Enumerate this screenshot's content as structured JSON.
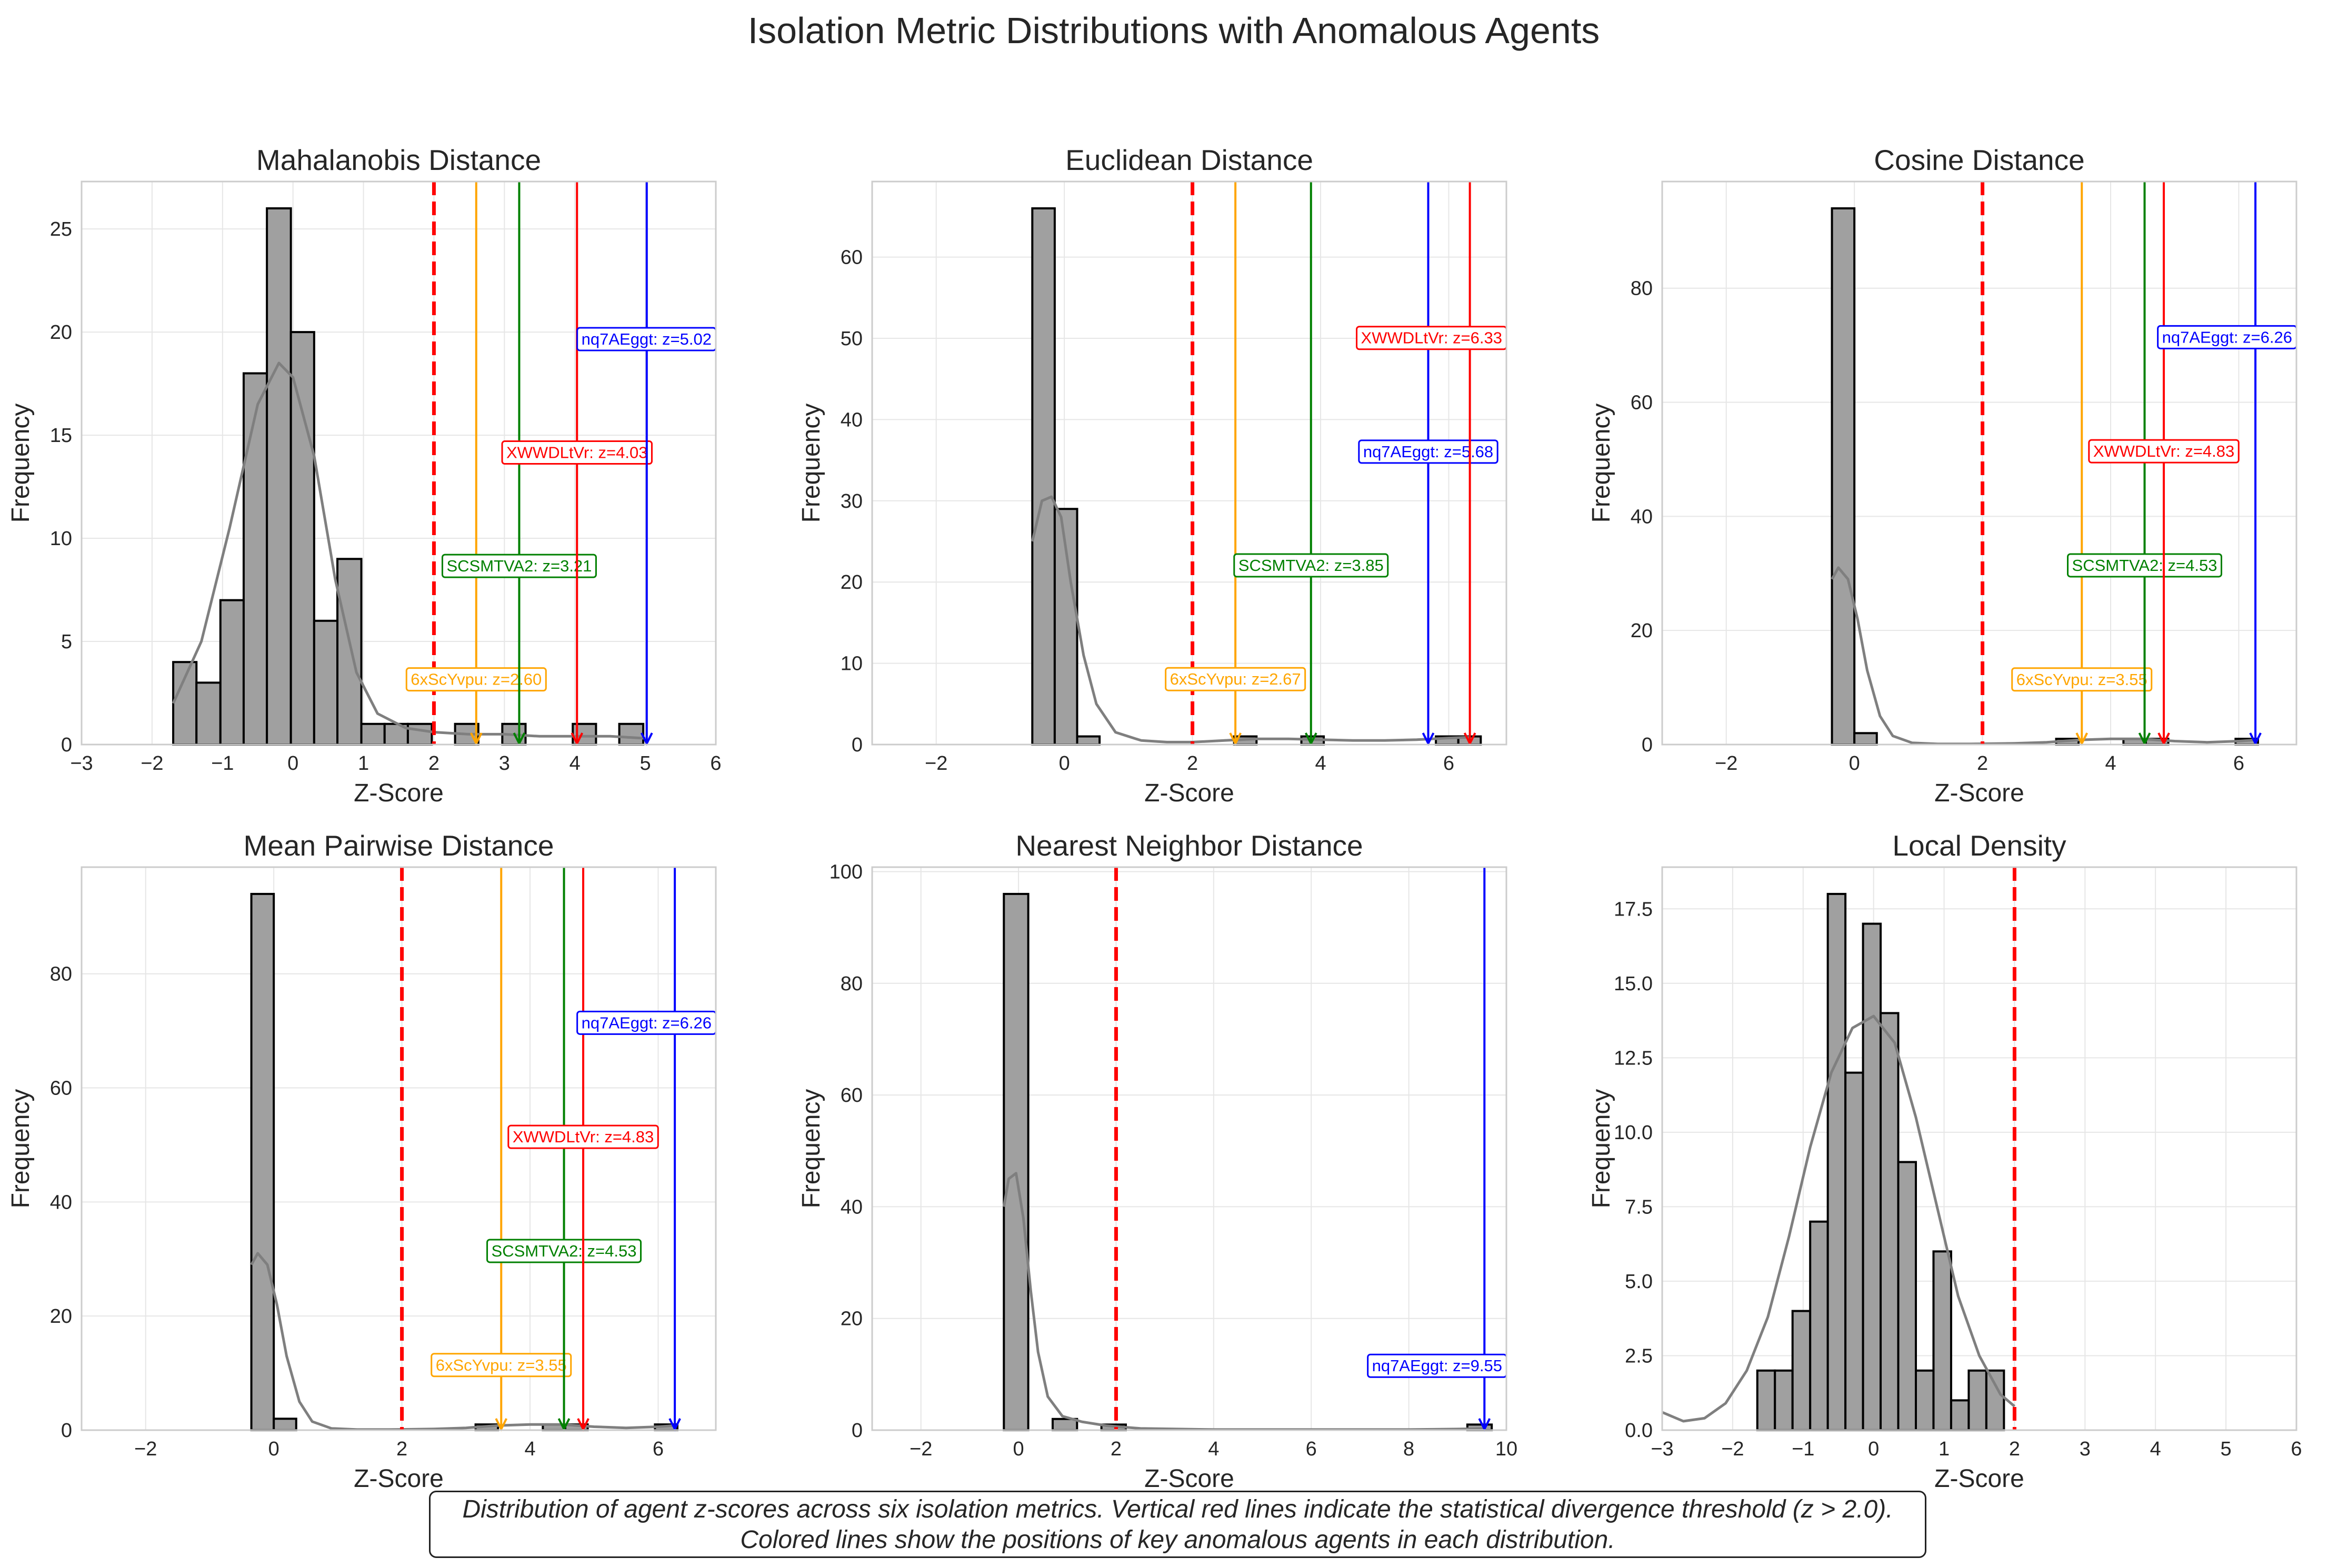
{
  "figure": {
    "title": "Isolation Metric Distributions with Anomalous Agents",
    "caption_line1": "Distribution of agent z-scores across six isolation metrics. Vertical red lines indicate the statistical divergence threshold (z > 2.0).",
    "caption_line2": "Colored lines show the positions of key anomalous agents in each distribution."
  },
  "colors": {
    "bar_fill": "#a0a0a0",
    "bar_edge": "#000000",
    "kde": "#7f7f7f",
    "threshold": "#ff0000",
    "grid": "#e6e6e6",
    "spine": "#cccccc",
    "agent_6xScYvpu": "#ffa500",
    "agent_SCSMTVA2": "#008000",
    "agent_XWWDLtVr": "#ff0000",
    "agent_nq7AEggt": "#0000ff"
  },
  "chart_data": [
    {
      "type": "bar",
      "title": "Mahalanobis Distance",
      "xlabel": "Z-Score",
      "ylabel": "Frequency",
      "xlim": [
        -3,
        6
      ],
      "ylim": [
        0,
        27.3
      ],
      "xticks": [
        -3,
        -2,
        -1,
        0,
        1,
        2,
        3,
        4,
        5,
        6
      ],
      "yticks": [
        0,
        5,
        10,
        15,
        20,
        25
      ],
      "ytick_decimals": 0,
      "grid": true,
      "threshold": 2.0,
      "bins": {
        "edges": [
          -1.7,
          -1.37,
          -1.03,
          -0.7,
          -0.37,
          -0.03,
          0.3,
          0.63,
          0.97,
          1.3,
          1.63,
          1.97,
          2.3,
          2.63,
          2.97,
          3.3,
          3.63,
          3.97,
          4.3,
          4.63,
          4.97,
          5.3
        ],
        "counts": [
          4,
          3,
          7,
          18,
          26,
          20,
          6,
          9,
          1,
          1,
          1,
          0,
          1,
          0,
          1,
          0,
          0,
          1,
          0,
          1,
          0
        ]
      },
      "kde": {
        "x": [
          -1.7,
          -1.3,
          -0.9,
          -0.5,
          -0.2,
          0.0,
          0.3,
          0.6,
          0.9,
          1.2,
          1.6,
          2.0,
          2.5,
          3.0,
          3.5,
          4.0,
          4.5,
          5.0
        ],
        "y": [
          2.0,
          5.0,
          10.5,
          16.5,
          18.5,
          17.8,
          14.0,
          8.0,
          3.5,
          1.5,
          0.8,
          0.6,
          0.5,
          0.5,
          0.4,
          0.4,
          0.4,
          0.3
        ]
      },
      "agents": [
        {
          "id": "6xScYvpu",
          "label": "6xScYvpu: z=2.60",
          "z": 2.6,
          "label_y": 3.1
        },
        {
          "id": "SCSMTVA2",
          "label": "SCSMTVA2: z=3.21",
          "z": 3.21,
          "label_y": 8.6
        },
        {
          "id": "XWWDLtVr",
          "label": "XWWDLtVr: z=4.03",
          "z": 4.03,
          "label_y": 14.1
        },
        {
          "id": "nq7AEggt",
          "label": "nq7AEggt: z=5.02",
          "z": 5.02,
          "label_y": 19.6
        }
      ]
    },
    {
      "type": "bar",
      "title": "Euclidean Distance",
      "xlabel": "Z-Score",
      "ylabel": "Frequency",
      "xlim": [
        -3,
        6.9
      ],
      "ylim": [
        0,
        69.3
      ],
      "xticks": [
        -2,
        0,
        2,
        4,
        6
      ],
      "yticks": [
        0,
        10,
        20,
        30,
        40,
        50,
        60
      ],
      "ytick_decimals": 0,
      "grid": true,
      "threshold": 2.0,
      "bins": {
        "edges": [
          -0.5,
          -0.15,
          0.2,
          0.55,
          0.9,
          1.25,
          1.6,
          1.95,
          2.3,
          2.65,
          3.0,
          3.35,
          3.7,
          4.05,
          4.4,
          4.75,
          5.1,
          5.45,
          5.8,
          6.15,
          6.5
        ],
        "counts": [
          66,
          29,
          1,
          0,
          0,
          0,
          0,
          0,
          0,
          1,
          0,
          0,
          1,
          0,
          0,
          0,
          0,
          0,
          1,
          1
        ]
      },
      "kde": {
        "x": [
          -0.5,
          -0.35,
          -0.2,
          -0.05,
          0.1,
          0.3,
          0.5,
          0.8,
          1.2,
          1.6,
          2.0,
          2.5,
          3.0,
          3.5,
          4.0,
          4.5,
          5.0,
          5.5,
          6.0,
          6.33
        ],
        "y": [
          25.0,
          30.0,
          30.5,
          28.0,
          20.0,
          11.0,
          5.0,
          1.5,
          0.5,
          0.3,
          0.3,
          0.5,
          0.7,
          0.7,
          0.6,
          0.5,
          0.5,
          0.6,
          0.8,
          0.9
        ]
      },
      "agents": [
        {
          "id": "6xScYvpu",
          "label": "6xScYvpu: z=2.67",
          "z": 2.67,
          "label_y": 7.9
        },
        {
          "id": "SCSMTVA2",
          "label": "SCSMTVA2: z=3.85",
          "z": 3.85,
          "label_y": 21.9
        },
        {
          "id": "nq7AEggt",
          "label": "nq7AEggt: z=5.68",
          "z": 5.68,
          "label_y": 35.9
        },
        {
          "id": "XWWDLtVr",
          "label": "XWWDLtVr: z=6.33",
          "z": 6.33,
          "label_y": 49.9
        }
      ]
    },
    {
      "type": "bar",
      "title": "Cosine Distance",
      "xlabel": "Z-Score",
      "ylabel": "Frequency",
      "xlim": [
        -3,
        6.9
      ],
      "ylim": [
        0,
        98.7
      ],
      "xticks": [
        -2,
        0,
        2,
        4,
        6
      ],
      "yticks": [
        0,
        20,
        40,
        60,
        80
      ],
      "ytick_decimals": 0,
      "grid": true,
      "threshold": 2.0,
      "bins": {
        "edges": [
          -0.35,
          0.0,
          0.35,
          0.7,
          1.05,
          1.4,
          1.75,
          2.1,
          2.45,
          2.8,
          3.15,
          3.5,
          3.85,
          4.2,
          4.55,
          4.9,
          5.25,
          5.6,
          5.95,
          6.3
        ],
        "counts": [
          94,
          2,
          0,
          0,
          0,
          0,
          0,
          0,
          0,
          0,
          1,
          0,
          0,
          1,
          1,
          0,
          0,
          0,
          1
        ]
      },
      "kde": {
        "x": [
          -0.35,
          -0.25,
          -0.1,
          0.05,
          0.2,
          0.4,
          0.6,
          0.9,
          1.3,
          1.8,
          2.5,
          3.0,
          3.5,
          4.0,
          4.5,
          5.0,
          5.5,
          6.0,
          6.26
        ],
        "y": [
          29.0,
          31.0,
          29.0,
          22.0,
          13.0,
          5.0,
          1.5,
          0.3,
          0.1,
          0.1,
          0.2,
          0.4,
          0.8,
          1.0,
          1.0,
          0.6,
          0.4,
          0.6,
          0.8
        ]
      },
      "agents": [
        {
          "id": "6xScYvpu",
          "label": "6xScYvpu: z=3.55",
          "z": 3.55,
          "label_y": 11.2
        },
        {
          "id": "SCSMTVA2",
          "label": "SCSMTVA2: z=4.53",
          "z": 4.53,
          "label_y": 31.2
        },
        {
          "id": "XWWDLtVr",
          "label": "XWWDLtVr: z=4.83",
          "z": 4.83,
          "label_y": 51.2
        },
        {
          "id": "nq7AEggt",
          "label": "nq7AEggt: z=6.26",
          "z": 6.26,
          "label_y": 71.2
        }
      ]
    },
    {
      "type": "bar",
      "title": "Mean Pairwise Distance",
      "xlabel": "Z-Score",
      "ylabel": "Frequency",
      "xlim": [
        -3,
        6.9
      ],
      "ylim": [
        0,
        98.7
      ],
      "xticks": [
        -2,
        0,
        2,
        4,
        6
      ],
      "yticks": [
        0,
        20,
        40,
        60,
        80
      ],
      "ytick_decimals": 0,
      "grid": true,
      "threshold": 2.0,
      "bins": {
        "edges": [
          -0.35,
          0.0,
          0.35,
          0.7,
          1.05,
          1.4,
          1.75,
          2.1,
          2.45,
          2.8,
          3.15,
          3.5,
          3.85,
          4.2,
          4.55,
          4.9,
          5.25,
          5.6,
          5.95,
          6.3
        ],
        "counts": [
          94,
          2,
          0,
          0,
          0,
          0,
          0,
          0,
          0,
          0,
          1,
          0,
          0,
          1,
          1,
          0,
          0,
          0,
          1
        ]
      },
      "kde": {
        "x": [
          -0.35,
          -0.25,
          -0.1,
          0.05,
          0.2,
          0.4,
          0.6,
          0.9,
          1.3,
          1.8,
          2.5,
          3.0,
          3.5,
          4.0,
          4.5,
          5.0,
          5.5,
          6.0,
          6.26
        ],
        "y": [
          29.0,
          31.0,
          29.0,
          22.0,
          13.0,
          5.0,
          1.5,
          0.3,
          0.1,
          0.1,
          0.2,
          0.4,
          0.8,
          1.0,
          1.0,
          0.6,
          0.4,
          0.6,
          0.8
        ]
      },
      "agents": [
        {
          "id": "6xScYvpu",
          "label": "6xScYvpu: z=3.55",
          "z": 3.55,
          "label_y": 11.2
        },
        {
          "id": "SCSMTVA2",
          "label": "SCSMTVA2: z=4.53",
          "z": 4.53,
          "label_y": 31.2
        },
        {
          "id": "XWWDLtVr",
          "label": "XWWDLtVr: z=4.83",
          "z": 4.83,
          "label_y": 51.2
        },
        {
          "id": "nq7AEggt",
          "label": "nq7AEggt: z=6.26",
          "z": 6.26,
          "label_y": 71.2
        }
      ]
    },
    {
      "type": "bar",
      "title": "Nearest Neighbor Distance",
      "xlabel": "Z-Score",
      "ylabel": "Frequency",
      "xlim": [
        -3,
        10
      ],
      "ylim": [
        0,
        100.8
      ],
      "xticks": [
        -2,
        0,
        2,
        4,
        6,
        8,
        10
      ],
      "yticks": [
        0,
        20,
        40,
        60,
        80,
        100
      ],
      "ytick_decimals": 0,
      "grid": true,
      "threshold": 2.0,
      "bins": {
        "edges": [
          -0.3,
          0.2,
          0.7,
          1.2,
          1.7,
          2.2,
          2.7,
          3.2,
          3.7,
          4.2,
          4.7,
          5.2,
          5.7,
          6.2,
          6.7,
          7.2,
          7.7,
          8.2,
          8.7,
          9.2,
          9.7
        ],
        "counts": [
          96,
          0,
          2,
          0,
          1,
          0,
          0,
          0,
          0,
          0,
          0,
          0,
          0,
          0,
          0,
          0,
          0,
          0,
          0,
          1
        ]
      },
      "kde": {
        "x": [
          -0.3,
          -0.2,
          -0.05,
          0.1,
          0.25,
          0.4,
          0.6,
          0.9,
          1.3,
          1.8,
          2.5,
          4.0,
          6.0,
          8.0,
          9.0,
          9.55
        ],
        "y": [
          40.0,
          45.0,
          46.0,
          38.0,
          25.0,
          14.0,
          6.0,
          2.5,
          1.5,
          0.8,
          0.3,
          0.1,
          0.1,
          0.1,
          0.2,
          0.3
        ]
      },
      "agents": [
        {
          "id": "nq7AEggt",
          "label": "nq7AEggt: z=9.55",
          "z": 9.55,
          "label_y": 11.3
        }
      ]
    },
    {
      "type": "bar",
      "title": "Local Density",
      "xlabel": "Z-Score",
      "ylabel": "Frequency",
      "xlim": [
        -3,
        6
      ],
      "ylim": [
        0,
        18.9
      ],
      "xticks": [
        -3,
        -2,
        -1,
        0,
        1,
        2,
        3,
        4,
        5,
        6
      ],
      "yticks": [
        0,
        2.5,
        5,
        7.5,
        10,
        12.5,
        15,
        17.5
      ],
      "ytick_decimals": 1,
      "grid": true,
      "threshold": 2.0,
      "bins": {
        "edges": [
          -1.65,
          -1.4,
          -1.15,
          -0.9,
          -0.65,
          -0.4,
          -0.15,
          0.1,
          0.35,
          0.6,
          0.85,
          1.1,
          1.35,
          1.6,
          1.85,
          2.1
        ],
        "counts": [
          2,
          2,
          4,
          7,
          18,
          12,
          17,
          14,
          9,
          2,
          6,
          1,
          2,
          2,
          0
        ]
      },
      "kde": {
        "x": [
          -3.0,
          -2.7,
          -2.4,
          -2.1,
          -1.8,
          -1.5,
          -1.2,
          -0.9,
          -0.6,
          -0.3,
          0.0,
          0.3,
          0.6,
          0.9,
          1.2,
          1.5,
          1.8,
          2.0
        ],
        "y": [
          0.6,
          0.3,
          0.4,
          0.9,
          2.0,
          3.8,
          6.5,
          9.5,
          12.0,
          13.5,
          13.9,
          13.0,
          10.5,
          7.5,
          4.5,
          2.5,
          1.2,
          0.8
        ]
      },
      "agents": []
    }
  ]
}
